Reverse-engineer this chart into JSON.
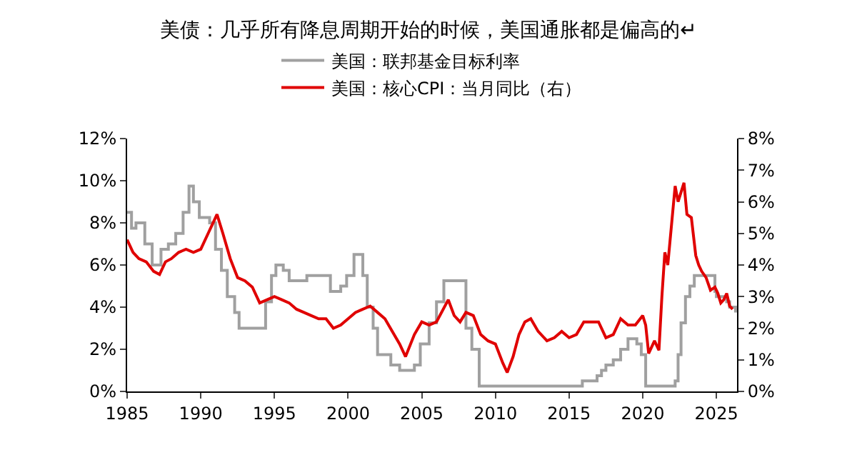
{
  "chart_data": {
    "type": "line",
    "title": "美债：几乎所有降息周期开始的时候，美国通胀都是偏高的↵",
    "xlim": [
      1985,
      2026.4
    ],
    "xticks": [
      1985,
      1990,
      1995,
      2000,
      2005,
      2010,
      2015,
      2020,
      2025
    ],
    "ylim": [
      0,
      12
    ],
    "yticks": [
      {
        "value": 0,
        "label": "0%"
      },
      {
        "value": 2,
        "label": "2%"
      },
      {
        "value": 4,
        "label": "4%"
      },
      {
        "value": 6,
        "label": "6%"
      },
      {
        "value": 8,
        "label": "8%"
      },
      {
        "value": 10,
        "label": "10%"
      },
      {
        "value": 12,
        "label": "12%"
      }
    ],
    "y2lim": [
      0,
      8
    ],
    "y2ticks": [
      {
        "value": 0,
        "label": "0%"
      },
      {
        "value": 1,
        "label": "1%"
      },
      {
        "value": 2,
        "label": "2%"
      },
      {
        "value": 3,
        "label": "3%"
      },
      {
        "value": 4,
        "label": "4%"
      },
      {
        "value": 5,
        "label": "5%"
      },
      {
        "value": 6,
        "label": "6%"
      },
      {
        "value": 7,
        "label": "7%"
      },
      {
        "value": 8,
        "label": "8%"
      }
    ],
    "legend": "top",
    "series": [
      {
        "name": "美国：联邦基金目标利率",
        "type": "step",
        "color": "#a0a0a0",
        "x": [
          1985.0,
          1985.3,
          1985.6,
          1986.2,
          1986.7,
          1987.3,
          1987.8,
          1988.3,
          1988.8,
          1989.2,
          1989.5,
          1989.9,
          1990.6,
          1991.0,
          1991.4,
          1991.8,
          1992.3,
          1992.6,
          1994.0,
          1994.4,
          1994.8,
          1995.1,
          1995.6,
          1996.0,
          1997.2,
          1998.8,
          1999.5,
          1999.9,
          2000.4,
          2001.0,
          2001.3,
          2001.7,
          2002.0,
          2002.9,
          2003.5,
          2004.5,
          2004.9,
          2005.5,
          2006.0,
          2006.5,
          2007.7,
          2008.0,
          2008.4,
          2008.9,
          2015.9,
          2016.9,
          2017.2,
          2017.5,
          2018.0,
          2018.5,
          2019.0,
          2019.6,
          2019.9,
          2020.2,
          2022.2,
          2022.4,
          2022.6,
          2022.9,
          2023.2,
          2023.5,
          2024.7,
          2024.9,
          2025.0,
          2025.7,
          2025.9,
          2026.3
        ],
        "values": [
          8.5,
          7.75,
          8.0,
          7.0,
          6.0,
          6.75,
          7.0,
          7.5,
          8.5,
          9.75,
          9.0,
          8.25,
          8.0,
          6.75,
          5.75,
          4.5,
          3.75,
          3.0,
          3.0,
          4.25,
          5.5,
          6.0,
          5.75,
          5.25,
          5.5,
          4.75,
          5.0,
          5.5,
          6.5,
          5.5,
          4.0,
          3.0,
          1.75,
          1.25,
          1.0,
          1.25,
          2.25,
          3.25,
          4.25,
          5.25,
          5.25,
          3.0,
          2.0,
          0.25,
          0.5,
          0.75,
          1.0,
          1.25,
          1.5,
          2.0,
          2.5,
          2.25,
          1.75,
          0.25,
          0.5,
          1.75,
          3.25,
          4.5,
          5.0,
          5.5,
          5.5,
          4.75,
          4.5,
          4.25,
          4.0,
          3.75
        ]
      },
      {
        "name": "美国：核心CPI：当月同比（右）",
        "axis": "y2",
        "color": "#e00000",
        "x": [
          1985.0,
          1985.4,
          1985.8,
          1986.3,
          1986.8,
          1987.2,
          1987.6,
          1988.0,
          1988.5,
          1989.0,
          1989.5,
          1990.0,
          1990.5,
          1990.9,
          1991.1,
          1991.5,
          1992.0,
          1992.5,
          1993.0,
          1993.5,
          1994.0,
          1994.5,
          1995.0,
          1995.5,
          1996.0,
          1996.5,
          1997.0,
          1997.5,
          1998.0,
          1998.5,
          1999.0,
          1999.5,
          2000.0,
          2000.5,
          2001.0,
          2001.5,
          2002.0,
          2002.5,
          2003.0,
          2003.5,
          2003.9,
          2004.5,
          2005.0,
          2005.5,
          2006.0,
          2006.8,
          2007.2,
          2007.6,
          2008.0,
          2008.5,
          2009.0,
          2009.5,
          2010.0,
          2010.5,
          2010.8,
          2011.2,
          2011.6,
          2012.0,
          2012.4,
          2012.9,
          2013.5,
          2014.0,
          2014.5,
          2015.0,
          2015.5,
          2016.0,
          2016.5,
          2017.0,
          2017.5,
          2018.0,
          2018.5,
          2019.0,
          2019.5,
          2020.0,
          2020.2,
          2020.4,
          2020.8,
          2021.1,
          2021.3,
          2021.5,
          2021.7,
          2022.0,
          2022.2,
          2022.4,
          2022.6,
          2022.8,
          2023.0,
          2023.3,
          2023.6,
          2023.8,
          2024.0,
          2024.3,
          2024.6,
          2024.9,
          2025.1,
          2025.3,
          2025.5,
          2025.7,
          2025.9,
          2026.1
        ],
        "values": [
          4.8,
          4.4,
          4.2,
          4.1,
          3.8,
          3.7,
          4.1,
          4.2,
          4.4,
          4.5,
          4.4,
          4.5,
          5.0,
          5.4,
          5.6,
          5.0,
          4.2,
          3.6,
          3.5,
          3.3,
          2.8,
          2.9,
          3.0,
          2.9,
          2.8,
          2.6,
          2.5,
          2.4,
          2.3,
          2.3,
          2.0,
          2.1,
          2.3,
          2.5,
          2.6,
          2.7,
          2.5,
          2.3,
          1.9,
          1.5,
          1.1,
          1.8,
          2.2,
          2.1,
          2.2,
          2.9,
          2.4,
          2.2,
          2.5,
          2.4,
          1.8,
          1.6,
          1.5,
          0.9,
          0.6,
          1.1,
          1.8,
          2.2,
          2.3,
          1.9,
          1.6,
          1.7,
          1.9,
          1.7,
          1.8,
          2.2,
          2.2,
          2.2,
          1.7,
          1.8,
          2.3,
          2.1,
          2.1,
          2.4,
          2.1,
          1.2,
          1.6,
          1.3,
          3.0,
          4.4,
          4.0,
          5.5,
          6.5,
          6.0,
          6.3,
          6.6,
          5.6,
          5.5,
          4.3,
          4.0,
          3.8,
          3.6,
          3.2,
          3.3,
          3.1,
          2.8,
          2.9,
          3.1,
          2.7,
          2.6
        ]
      }
    ]
  }
}
